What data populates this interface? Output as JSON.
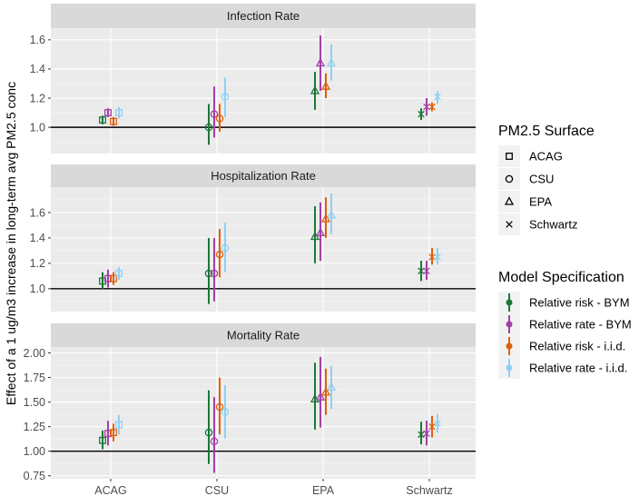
{
  "chart_data": {
    "type": "scatter",
    "subtype": "point-range, faceted by outcome",
    "ylabel": "Effect of a 1 ug/m3 increase in long-term avg PM2.5 conc",
    "categories": [
      "ACAG",
      "CSU",
      "EPA",
      "Schwartz"
    ],
    "reference_line": 1.0,
    "grid": true,
    "legend_placement": "right",
    "shape_legend": {
      "title": "PM2.5 Surface",
      "items": [
        {
          "label": "ACAG",
          "shape": "square"
        },
        {
          "label": "CSU",
          "shape": "circle"
        },
        {
          "label": "EPA",
          "shape": "triangle"
        },
        {
          "label": "Schwartz",
          "shape": "cross"
        }
      ]
    },
    "color_legend": {
      "title": "Model Specification",
      "items": [
        {
          "label": "Relative risk - BYM",
          "color": "#1b7837"
        },
        {
          "label": "Relative rate - BYM",
          "color": "#a43fa8"
        },
        {
          "label": "Relative risk - i.i.d.",
          "color": "#e0600b"
        },
        {
          "label": "Relative rate - i.i.d.",
          "color": "#8fd0f4"
        }
      ]
    },
    "panels": [
      {
        "title": "Infection Rate",
        "ylim": [
          0.82,
          1.68
        ],
        "yticks": [
          1.0,
          1.2,
          1.4,
          1.6
        ],
        "ytick_labels": [
          "1.0",
          "1.2",
          "1.4",
          "1.6"
        ],
        "series": [
          {
            "name": "Relative risk - BYM",
            "estimate": [
              1.05,
              1.0,
              1.25,
              1.09
            ],
            "lower": [
              1.02,
              0.88,
              1.12,
              1.05
            ],
            "upper": [
              1.08,
              1.16,
              1.38,
              1.13
            ]
          },
          {
            "name": "Relative rate - BYM",
            "estimate": [
              1.1,
              1.09,
              1.44,
              1.14
            ],
            "lower": [
              1.07,
              0.93,
              1.25,
              1.08
            ],
            "upper": [
              1.13,
              1.28,
              1.63,
              1.2
            ]
          },
          {
            "name": "Relative risk - i.i.d.",
            "estimate": [
              1.04,
              1.06,
              1.28,
              1.14
            ],
            "lower": [
              1.01,
              0.97,
              1.2,
              1.11
            ],
            "upper": [
              1.07,
              1.16,
              1.37,
              1.17
            ]
          },
          {
            "name": "Relative rate - i.i.d.",
            "estimate": [
              1.1,
              1.21,
              1.44,
              1.21
            ],
            "lower": [
              1.06,
              1.07,
              1.32,
              1.16
            ],
            "upper": [
              1.14,
              1.34,
              1.57,
              1.25
            ]
          }
        ]
      },
      {
        "title": "Hospitalization Rate",
        "ylim": [
          0.82,
          1.8
        ],
        "yticks": [
          1.0,
          1.2,
          1.4,
          1.6
        ],
        "ytick_labels": [
          "1.0",
          "1.2",
          "1.4",
          "1.6"
        ],
        "series": [
          {
            "name": "Relative risk - BYM",
            "estimate": [
              1.06,
              1.12,
              1.41,
              1.14
            ],
            "lower": [
              1.0,
              0.88,
              1.2,
              1.06
            ],
            "upper": [
              1.13,
              1.4,
              1.65,
              1.22
            ]
          },
          {
            "name": "Relative rate - BYM",
            "estimate": [
              1.08,
              1.12,
              1.44,
              1.14
            ],
            "lower": [
              1.01,
              0.9,
              1.22,
              1.07
            ],
            "upper": [
              1.15,
              1.4,
              1.68,
              1.22
            ]
          },
          {
            "name": "Relative risk - i.i.d.",
            "estimate": [
              1.08,
              1.27,
              1.55,
              1.25
            ],
            "lower": [
              1.03,
              1.09,
              1.4,
              1.19
            ],
            "upper": [
              1.13,
              1.47,
              1.72,
              1.32
            ]
          },
          {
            "name": "Relative rate - i.i.d.",
            "estimate": [
              1.12,
              1.32,
              1.58,
              1.25
            ],
            "lower": [
              1.07,
              1.13,
              1.43,
              1.19
            ],
            "upper": [
              1.17,
              1.52,
              1.75,
              1.32
            ]
          }
        ]
      },
      {
        "title": "Mortality Rate",
        "ylim": [
          0.72,
          2.06
        ],
        "yticks": [
          0.75,
          1.0,
          1.25,
          1.5,
          1.75,
          2.0
        ],
        "ytick_labels": [
          "0.75",
          "1.00",
          "1.25",
          "1.50",
          "1.75",
          "2.00"
        ],
        "series": [
          {
            "name": "Relative risk - BYM",
            "estimate": [
              1.11,
              1.19,
              1.53,
              1.17
            ],
            "lower": [
              1.02,
              0.87,
              1.22,
              1.07
            ],
            "upper": [
              1.21,
              1.62,
              1.9,
              1.3
            ]
          },
          {
            "name": "Relative rate - BYM",
            "estimate": [
              1.18,
              1.1,
              1.55,
              1.18
            ],
            "lower": [
              1.06,
              0.78,
              1.24,
              1.06
            ],
            "upper": [
              1.31,
              1.55,
              1.96,
              1.31
            ]
          },
          {
            "name": "Relative risk - i.i.d.",
            "estimate": [
              1.19,
              1.45,
              1.6,
              1.25
            ],
            "lower": [
              1.1,
              1.17,
              1.37,
              1.14
            ],
            "upper": [
              1.28,
              1.75,
              1.84,
              1.36
            ]
          },
          {
            "name": "Relative rate - i.i.d.",
            "estimate": [
              1.27,
              1.4,
              1.65,
              1.28
            ],
            "lower": [
              1.17,
              1.13,
              1.43,
              1.19
            ],
            "upper": [
              1.37,
              1.67,
              1.87,
              1.38
            ]
          }
        ]
      }
    ]
  }
}
